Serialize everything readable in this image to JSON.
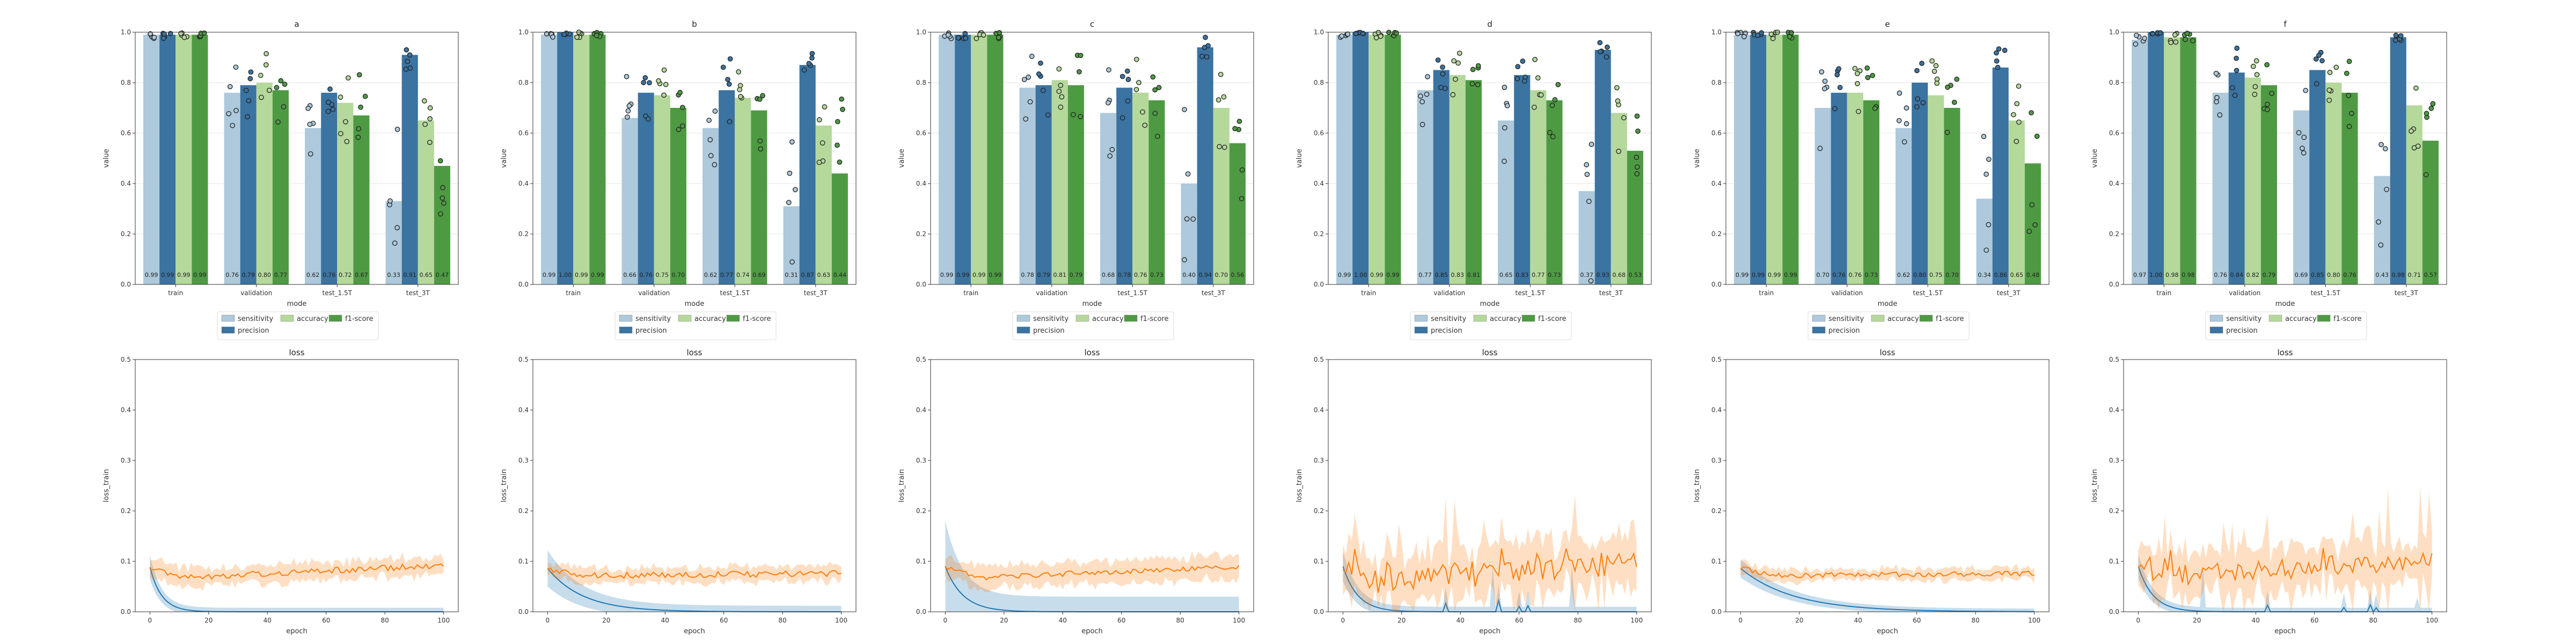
{
  "colors": {
    "sensitivity": "#adc9db",
    "precision": "#3b73a1",
    "accuracy": "#b5d89b",
    "f1-score": "#4e9a43",
    "loss_blue": "#1f77b4",
    "loss_orange": "#ff7f0e"
  },
  "legend_labels": [
    "sensitivity",
    "precision",
    "accuracy",
    "f1-score"
  ],
  "bar_xlabel": "mode",
  "bar_ylabel": "value",
  "bar_yticks": [
    "0.0",
    "0.2",
    "0.4",
    "0.6",
    "0.8",
    "1.0"
  ],
  "loss_title": "loss",
  "loss_xlabel": "epoch",
  "loss_ylabel": "loss_train",
  "loss_yticks": [
    "0.0",
    "0.1",
    "0.2",
    "0.3",
    "0.4",
    "0.5"
  ],
  "loss_xticks": [
    "0",
    "20",
    "40",
    "60",
    "80",
    "100"
  ],
  "chart_data": [
    {
      "type": "bar",
      "title": "a",
      "categories": [
        "train",
        "validation",
        "test_1.5T",
        "test_3T"
      ],
      "ylim": [
        0,
        1
      ],
      "legend": "below",
      "series": [
        {
          "name": "sensitivity",
          "values": [
            0.99,
            0.76,
            0.62,
            0.33
          ],
          "labels": [
            "0.99",
            "0.76",
            "0.62",
            "0.33"
          ]
        },
        {
          "name": "precision",
          "values": [
            0.99,
            0.79,
            0.76,
            0.91
          ],
          "labels": [
            "0.99",
            "0.79",
            "0.76",
            "0.91"
          ]
        },
        {
          "name": "accuracy",
          "values": [
            0.99,
            0.8,
            0.72,
            0.65
          ],
          "labels": [
            "0.99",
            "0.80",
            "0.72",
            "0.65"
          ]
        },
        {
          "name": "f1-score",
          "values": [
            0.99,
            0.77,
            0.67,
            0.47
          ],
          "labels": [
            "0.99",
            "0.77",
            "0.67",
            "0.47"
          ]
        }
      ]
    },
    {
      "type": "bar",
      "title": "b",
      "categories": [
        "train",
        "validation",
        "test_1.5T",
        "test_3T"
      ],
      "ylim": [
        0,
        1
      ],
      "legend": "below",
      "series": [
        {
          "name": "sensitivity",
          "values": [
            0.99,
            0.66,
            0.62,
            0.31
          ],
          "labels": [
            "0.99",
            "0.66",
            "0.62",
            "0.31"
          ]
        },
        {
          "name": "precision",
          "values": [
            1.0,
            0.76,
            0.77,
            0.87
          ],
          "labels": [
            "1.00",
            "0.76",
            "0.77",
            "0.87"
          ]
        },
        {
          "name": "accuracy",
          "values": [
            0.99,
            0.75,
            0.74,
            0.63
          ],
          "labels": [
            "0.99",
            "0.75",
            "0.74",
            "0.63"
          ]
        },
        {
          "name": "f1-score",
          "values": [
            0.99,
            0.7,
            0.69,
            0.44
          ],
          "labels": [
            "0.99",
            "0.70",
            "0.69",
            "0.44"
          ]
        }
      ]
    },
    {
      "type": "bar",
      "title": "c",
      "categories": [
        "train",
        "validation",
        "test_1.5T",
        "test_3T"
      ],
      "ylim": [
        0,
        1
      ],
      "legend": "below",
      "series": [
        {
          "name": "sensitivity",
          "values": [
            0.99,
            0.78,
            0.68,
            0.4
          ],
          "labels": [
            "0.99",
            "0.78",
            "0.68",
            "0.40"
          ]
        },
        {
          "name": "precision",
          "values": [
            0.99,
            0.79,
            0.78,
            0.94
          ],
          "labels": [
            "0.99",
            "0.79",
            "0.78",
            "0.94"
          ]
        },
        {
          "name": "accuracy",
          "values": [
            0.99,
            0.81,
            0.76,
            0.7
          ],
          "labels": [
            "0.99",
            "0.81",
            "0.76",
            "0.70"
          ]
        },
        {
          "name": "f1-score",
          "values": [
            0.99,
            0.79,
            0.73,
            0.56
          ],
          "labels": [
            "0.99",
            "0.79",
            "0.73",
            "0.56"
          ]
        }
      ]
    },
    {
      "type": "bar",
      "title": "d",
      "categories": [
        "train",
        "validation",
        "test_1.5T",
        "test_3T"
      ],
      "ylim": [
        0,
        1
      ],
      "legend": "below",
      "series": [
        {
          "name": "sensitivity",
          "values": [
            0.99,
            0.77,
            0.65,
            0.37
          ],
          "labels": [
            "0.99",
            "0.77",
            "0.65",
            "0.37"
          ]
        },
        {
          "name": "precision",
          "values": [
            1.0,
            0.85,
            0.83,
            0.93
          ],
          "labels": [
            "1.00",
            "0.85",
            "0.83",
            "0.93"
          ]
        },
        {
          "name": "accuracy",
          "values": [
            0.99,
            0.83,
            0.77,
            0.68
          ],
          "labels": [
            "0.99",
            "0.83",
            "0.77",
            "0.68"
          ]
        },
        {
          "name": "f1-score",
          "values": [
            0.99,
            0.81,
            0.73,
            0.53
          ],
          "labels": [
            "0.99",
            "0.81",
            "0.73",
            "0.53"
          ]
        }
      ]
    },
    {
      "type": "bar",
      "title": "e",
      "categories": [
        "train",
        "validation",
        "test_1.5T",
        "test_3T"
      ],
      "ylim": [
        0,
        1
      ],
      "legend": "below",
      "series": [
        {
          "name": "sensitivity",
          "values": [
            0.99,
            0.7,
            0.62,
            0.34
          ],
          "labels": [
            "0.99",
            "0.70",
            "0.62",
            "0.34"
          ]
        },
        {
          "name": "precision",
          "values": [
            0.99,
            0.76,
            0.8,
            0.86
          ],
          "labels": [
            "0.99",
            "0.76",
            "0.80",
            "0.86"
          ]
        },
        {
          "name": "accuracy",
          "values": [
            0.99,
            0.76,
            0.75,
            0.65
          ],
          "labels": [
            "0.99",
            "0.76",
            "0.75",
            "0.65"
          ]
        },
        {
          "name": "f1-score",
          "values": [
            0.99,
            0.73,
            0.7,
            0.48
          ],
          "labels": [
            "0.99",
            "0.73",
            "0.70",
            "0.48"
          ]
        }
      ]
    },
    {
      "type": "bar",
      "title": "f",
      "categories": [
        "train",
        "validation",
        "test_1.5T",
        "test_3T"
      ],
      "ylim": [
        0,
        1
      ],
      "legend": "below",
      "series": [
        {
          "name": "sensitivity",
          "values": [
            0.97,
            0.76,
            0.69,
            0.43
          ],
          "labels": [
            "0.97",
            "0.76",
            "0.69",
            "0.43"
          ]
        },
        {
          "name": "precision",
          "values": [
            1.0,
            0.84,
            0.85,
            0.98
          ],
          "labels": [
            "1.00",
            "0.84",
            "0.85",
            "0.98"
          ]
        },
        {
          "name": "accuracy",
          "values": [
            0.98,
            0.82,
            0.8,
            0.71
          ],
          "labels": [
            "0.98",
            "0.82",
            "0.80",
            "0.71"
          ]
        },
        {
          "name": "f1-score",
          "values": [
            0.98,
            0.79,
            0.76,
            0.57
          ],
          "labels": [
            "0.98",
            "0.79",
            "0.76",
            "0.57"
          ]
        }
      ]
    },
    {
      "type": "line",
      "title": "loss",
      "xlim": [
        -5,
        105
      ],
      "ylim": [
        0,
        0.5
      ],
      "series": [
        {
          "kind": "fast",
          "start": 0.088,
          "decay": 4,
          "end": 0.0,
          "bandwidth": 0.008
        },
        {
          "kind": "rise",
          "start": 0.088,
          "min": 0.068,
          "end": 0.092,
          "noise": 0.006,
          "bandwidth": 0.018
        }
      ]
    },
    {
      "type": "line",
      "title": "loss",
      "xlim": [
        -5,
        105
      ],
      "ylim": [
        0,
        0.5
      ],
      "series": [
        {
          "kind": "slow",
          "start": 0.086,
          "decay": 12,
          "end": 0.0,
          "bandwidth": 0.012
        },
        {
          "kind": "flat",
          "start": 0.086,
          "min": 0.072,
          "end": 0.076,
          "noise": 0.006,
          "bandwidth": 0.015
        }
      ]
    },
    {
      "type": "line",
      "title": "loss",
      "xlim": [
        -5,
        105
      ],
      "ylim": [
        0,
        0.5
      ],
      "series": [
        {
          "kind": "fast",
          "start": 0.09,
          "decay": 6,
          "end": 0.0,
          "bandwidth": 0.03
        },
        {
          "kind": "rise",
          "start": 0.09,
          "min": 0.068,
          "end": 0.09,
          "noise": 0.005,
          "bandwidth": 0.022
        }
      ]
    },
    {
      "type": "line",
      "title": "loss",
      "xlim": [
        -5,
        105
      ],
      "ylim": [
        0,
        0.5
      ],
      "series": [
        {
          "kind": "fast-spiky",
          "start": 0.09,
          "decay": 5,
          "end": 0.0,
          "bandwidth": 0.01
        },
        {
          "kind": "noisy-rise",
          "start": 0.09,
          "min": 0.06,
          "end": 0.1,
          "noise": 0.025,
          "bandwidth": 0.05
        }
      ]
    },
    {
      "type": "line",
      "title": "loss",
      "xlim": [
        -5,
        105
      ],
      "ylim": [
        0,
        0.5
      ],
      "series": [
        {
          "kind": "slow",
          "start": 0.086,
          "decay": 18,
          "end": 0.0,
          "bandwidth": 0.006
        },
        {
          "kind": "flat",
          "start": 0.086,
          "min": 0.072,
          "end": 0.076,
          "noise": 0.005,
          "bandwidth": 0.012
        }
      ]
    },
    {
      "type": "line",
      "title": "loss",
      "xlim": [
        -5,
        105
      ],
      "ylim": [
        0,
        0.5
      ],
      "series": [
        {
          "kind": "fast-spiky",
          "start": 0.09,
          "decay": 5,
          "end": 0.0,
          "bandwidth": 0.008
        },
        {
          "kind": "noisy-rise",
          "start": 0.09,
          "min": 0.07,
          "end": 0.105,
          "noise": 0.02,
          "bandwidth": 0.04
        }
      ]
    }
  ]
}
